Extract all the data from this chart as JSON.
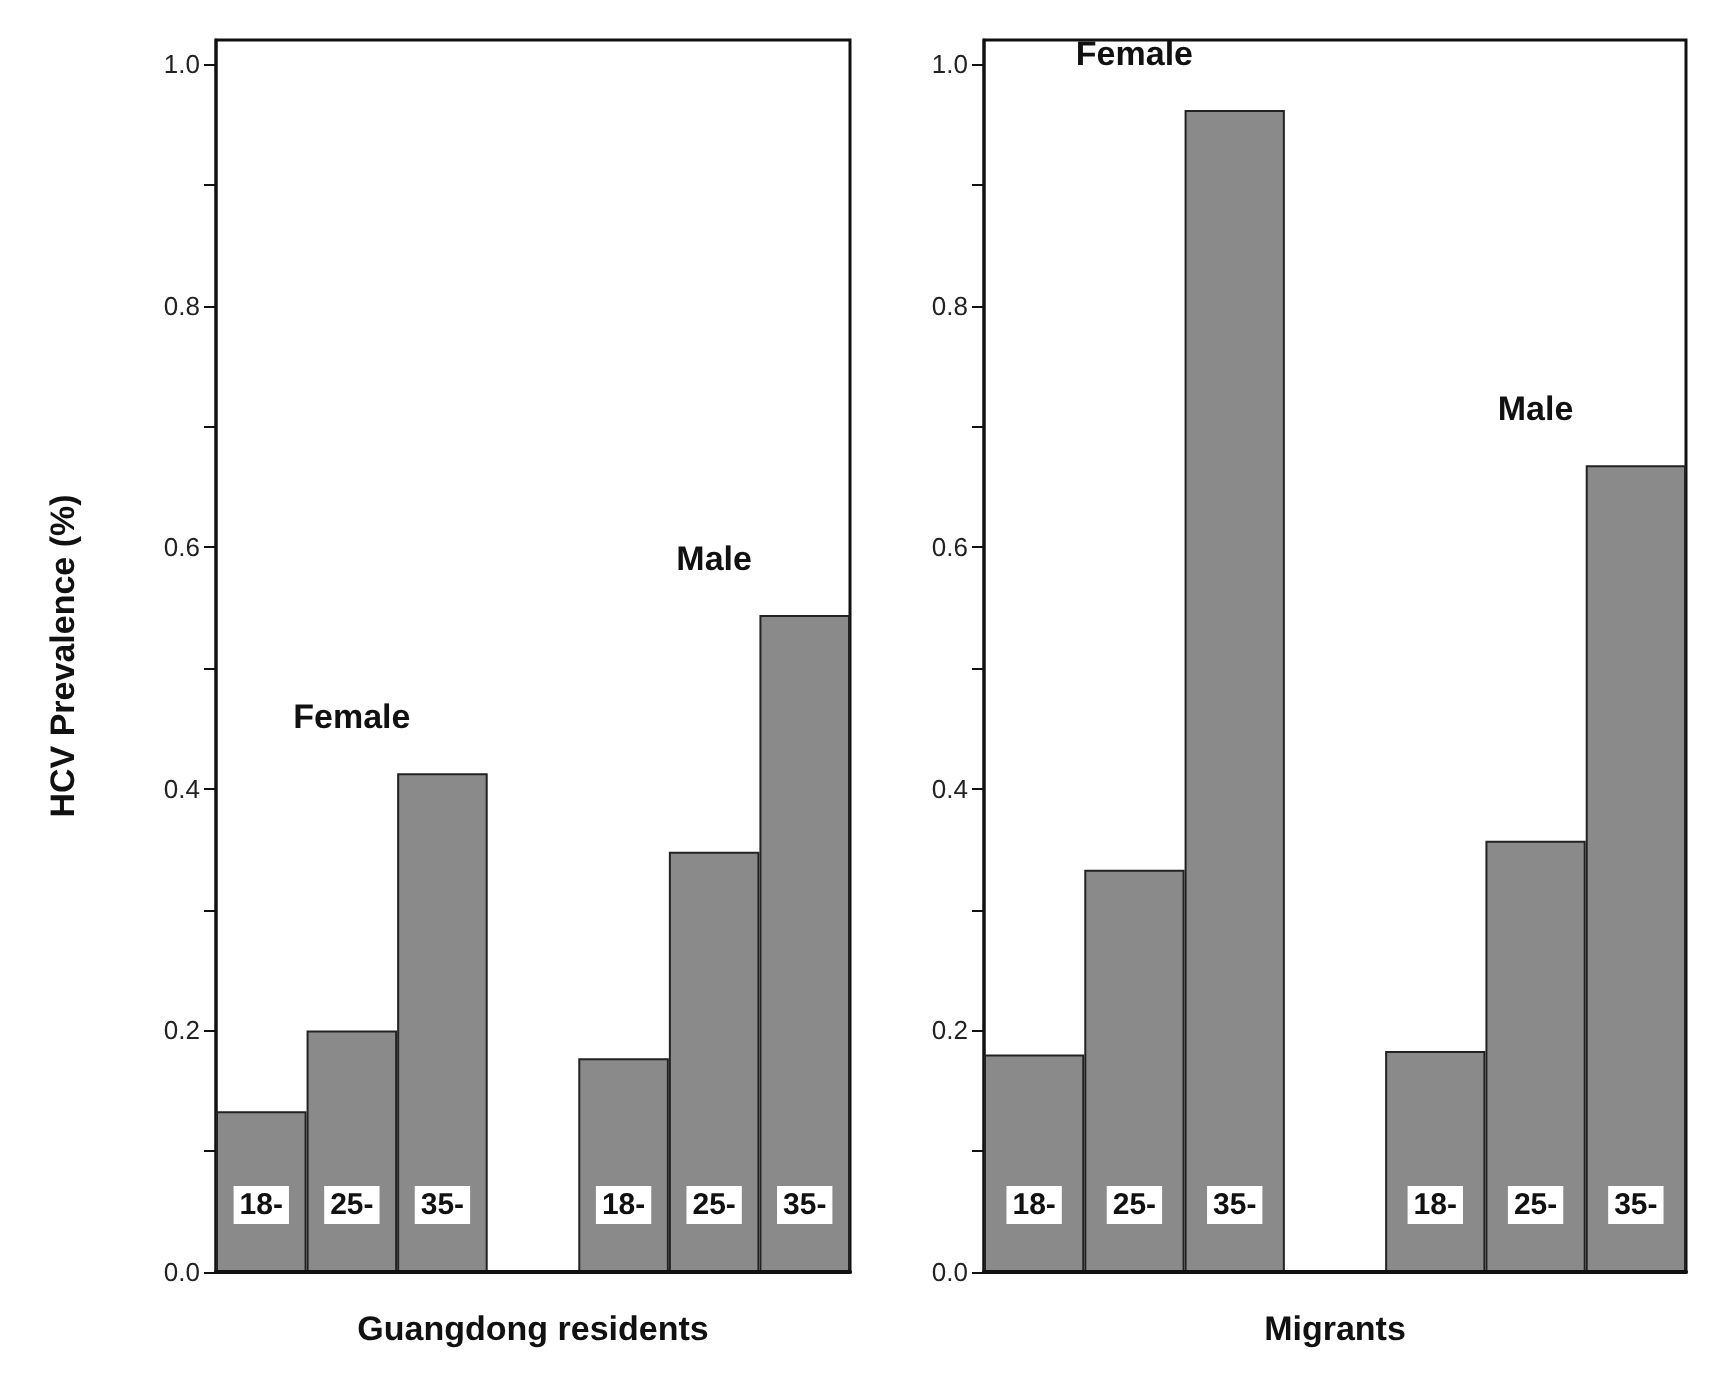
{
  "chart_data": [
    {
      "type": "bar",
      "xlabel": "Guangdong residents",
      "ylabel": "HCV Prevalence (%)",
      "categories": [
        "18-",
        "25-",
        "35-",
        null,
        "18-",
        "25-",
        "35-"
      ],
      "series": [
        {
          "name": "Female",
          "color": "#8a8a8a",
          "values": [
            0.133,
            0.2,
            0.413,
            null,
            null,
            null,
            null
          ]
        },
        {
          "name": "Male",
          "color": "#8a8a8a",
          "values": [
            null,
            null,
            null,
            null,
            0.177,
            0.348,
            0.544
          ]
        }
      ],
      "ylim": [
        0,
        1.02
      ],
      "yticks": [
        {
          "value": 0,
          "label": "0.0"
        },
        {
          "value": 0.1,
          "label": null
        },
        0.2,
        {
          "value": 0.3,
          "label": null
        },
        0.4,
        {
          "value": 0.5,
          "label": null
        },
        0.6,
        {
          "value": 0.7,
          "label": null
        },
        0.8,
        {
          "value": 0.9,
          "label": null
        },
        {
          "value": 1,
          "label": "1.0"
        }
      ],
      "grid": false,
      "legend": false
    },
    {
      "type": "bar",
      "xlabel": "Migrants",
      "categories": [
        "18-",
        "25-",
        "35-",
        null,
        "18-",
        "25-",
        "35-"
      ],
      "series": [
        {
          "name": "Female",
          "color": "#8a8a8a",
          "values": [
            0.18,
            0.333,
            0.962,
            null,
            null,
            null,
            null
          ]
        },
        {
          "name": "Male",
          "color": "#8a8a8a",
          "values": [
            null,
            null,
            null,
            null,
            0.183,
            0.357,
            0.668
          ]
        }
      ],
      "ylim": [
        0,
        1.02
      ],
      "yticks": [
        {
          "value": 0,
          "label": "0.0"
        },
        {
          "value": 0.1,
          "label": null
        },
        0.2,
        {
          "value": 0.3,
          "label": null
        },
        0.4,
        {
          "value": 0.5,
          "label": null
        },
        0.6,
        {
          "value": 0.7,
          "label": null
        },
        0.8,
        {
          "value": 0.9,
          "label": null
        },
        {
          "value": 1,
          "label": "1.0"
        }
      ],
      "grid": false,
      "legend": false
    }
  ]
}
